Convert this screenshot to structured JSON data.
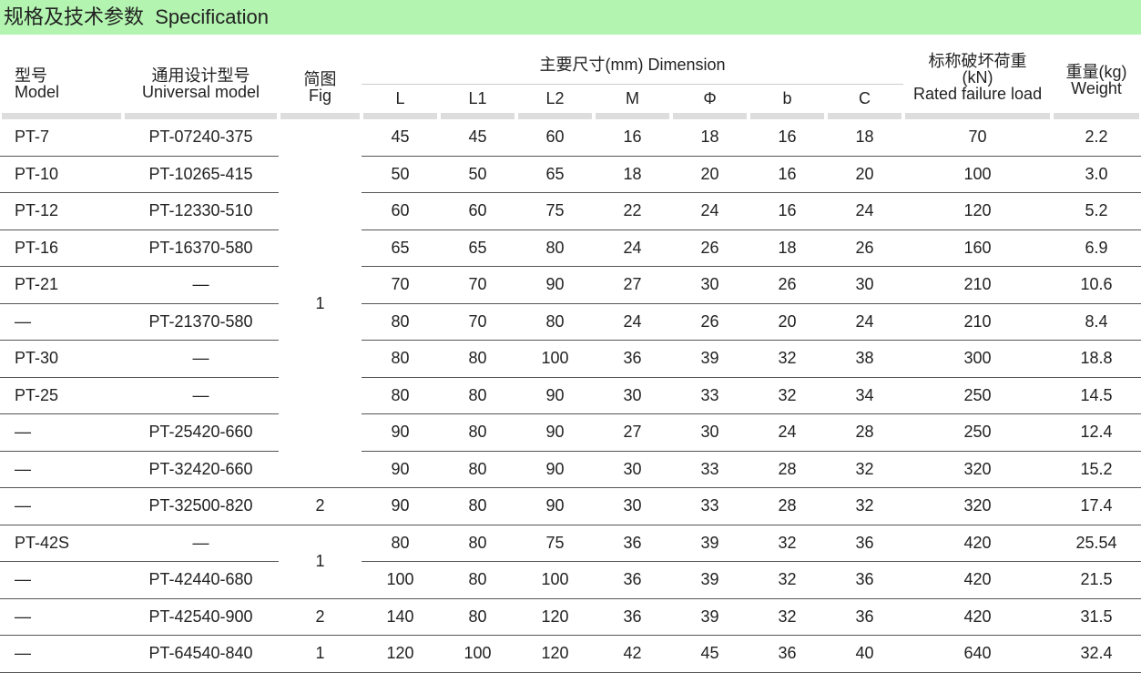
{
  "title": "规格及技术参数  Specification",
  "headers": {
    "model_cn": "型号",
    "model_en": "Model",
    "universal_cn": "通用设计型号",
    "universal_en": "Universal  model",
    "fig_cn": "简图",
    "fig_en": "Fig",
    "dimension": "主要尺寸(mm)  Dimension",
    "dims": [
      "L",
      "L1",
      "L2",
      "M",
      "Φ",
      "b",
      "C"
    ],
    "load_cn": "标称破坏荷重",
    "load_unit": "(kN)",
    "load_en": "Rated failure load",
    "weight_cn": "重量(kg)",
    "weight_en": "Weight"
  },
  "rows": [
    {
      "model": "PT-7",
      "universal": "PT-07240-375",
      "dims": [
        "45",
        "45",
        "60",
        "16",
        "18",
        "16",
        "18"
      ],
      "load": "70",
      "weight": "2.2"
    },
    {
      "model": "PT-10",
      "universal": "PT-10265-415",
      "dims": [
        "50",
        "50",
        "65",
        "18",
        "20",
        "16",
        "20"
      ],
      "load": "100",
      "weight": "3.0"
    },
    {
      "model": "PT-12",
      "universal": "PT-12330-510",
      "dims": [
        "60",
        "60",
        "75",
        "22",
        "24",
        "16",
        "24"
      ],
      "load": "120",
      "weight": "5.2"
    },
    {
      "model": "PT-16",
      "universal": "PT-16370-580",
      "dims": [
        "65",
        "65",
        "80",
        "24",
        "26",
        "18",
        "26"
      ],
      "load": "160",
      "weight": "6.9"
    },
    {
      "model": "PT-21",
      "universal": "—",
      "dims": [
        "70",
        "70",
        "90",
        "27",
        "30",
        "26",
        "30"
      ],
      "load": "210",
      "weight": "10.6"
    },
    {
      "model": "—",
      "universal": "PT-21370-580",
      "dims": [
        "80",
        "70",
        "80",
        "24",
        "26",
        "20",
        "24"
      ],
      "load": "210",
      "weight": "8.4"
    },
    {
      "model": "PT-30",
      "universal": "—",
      "dims": [
        "80",
        "80",
        "100",
        "36",
        "39",
        "32",
        "38"
      ],
      "load": "300",
      "weight": "18.8"
    },
    {
      "model": "PT-25",
      "universal": "—",
      "dims": [
        "80",
        "80",
        "90",
        "30",
        "33",
        "32",
        "34"
      ],
      "load": "250",
      "weight": "14.5"
    },
    {
      "model": "—",
      "universal": "PT-25420-660",
      "dims": [
        "90",
        "80",
        "90",
        "27",
        "30",
        "24",
        "28"
      ],
      "load": "250",
      "weight": "12.4"
    },
    {
      "model": "—",
      "universal": "PT-32420-660",
      "dims": [
        "90",
        "80",
        "90",
        "30",
        "33",
        "28",
        "32"
      ],
      "load": "320",
      "weight": "15.2"
    },
    {
      "model": "—",
      "universal": "PT-32500-820",
      "dims": [
        "90",
        "80",
        "90",
        "30",
        "33",
        "28",
        "32"
      ],
      "load": "320",
      "weight": "17.4"
    },
    {
      "model": "PT-42S",
      "universal": "—",
      "dims": [
        "80",
        "80",
        "75",
        "36",
        "39",
        "32",
        "36"
      ],
      "load": "420",
      "weight": "25.54"
    },
    {
      "model": "—",
      "universal": "PT-42440-680",
      "dims": [
        "100",
        "80",
        "100",
        "36",
        "39",
        "32",
        "36"
      ],
      "load": "420",
      "weight": "21.5"
    },
    {
      "model": "—",
      "universal": "PT-42540-900",
      "dims": [
        "140",
        "80",
        "120",
        "36",
        "39",
        "32",
        "36"
      ],
      "load": "420",
      "weight": "31.5"
    },
    {
      "model": "—",
      "universal": "PT-64540-840",
      "dims": [
        "120",
        "100",
        "120",
        "42",
        "45",
        "36",
        "40"
      ],
      "load": "640",
      "weight": "32.4"
    }
  ],
  "fig_groups": [
    {
      "value": "1",
      "rows": 10
    },
    {
      "value": "2",
      "rows": 1
    },
    {
      "value": "1",
      "rows": 2
    },
    {
      "value": "2",
      "rows": 1
    },
    {
      "value": "1",
      "rows": 1
    }
  ]
}
